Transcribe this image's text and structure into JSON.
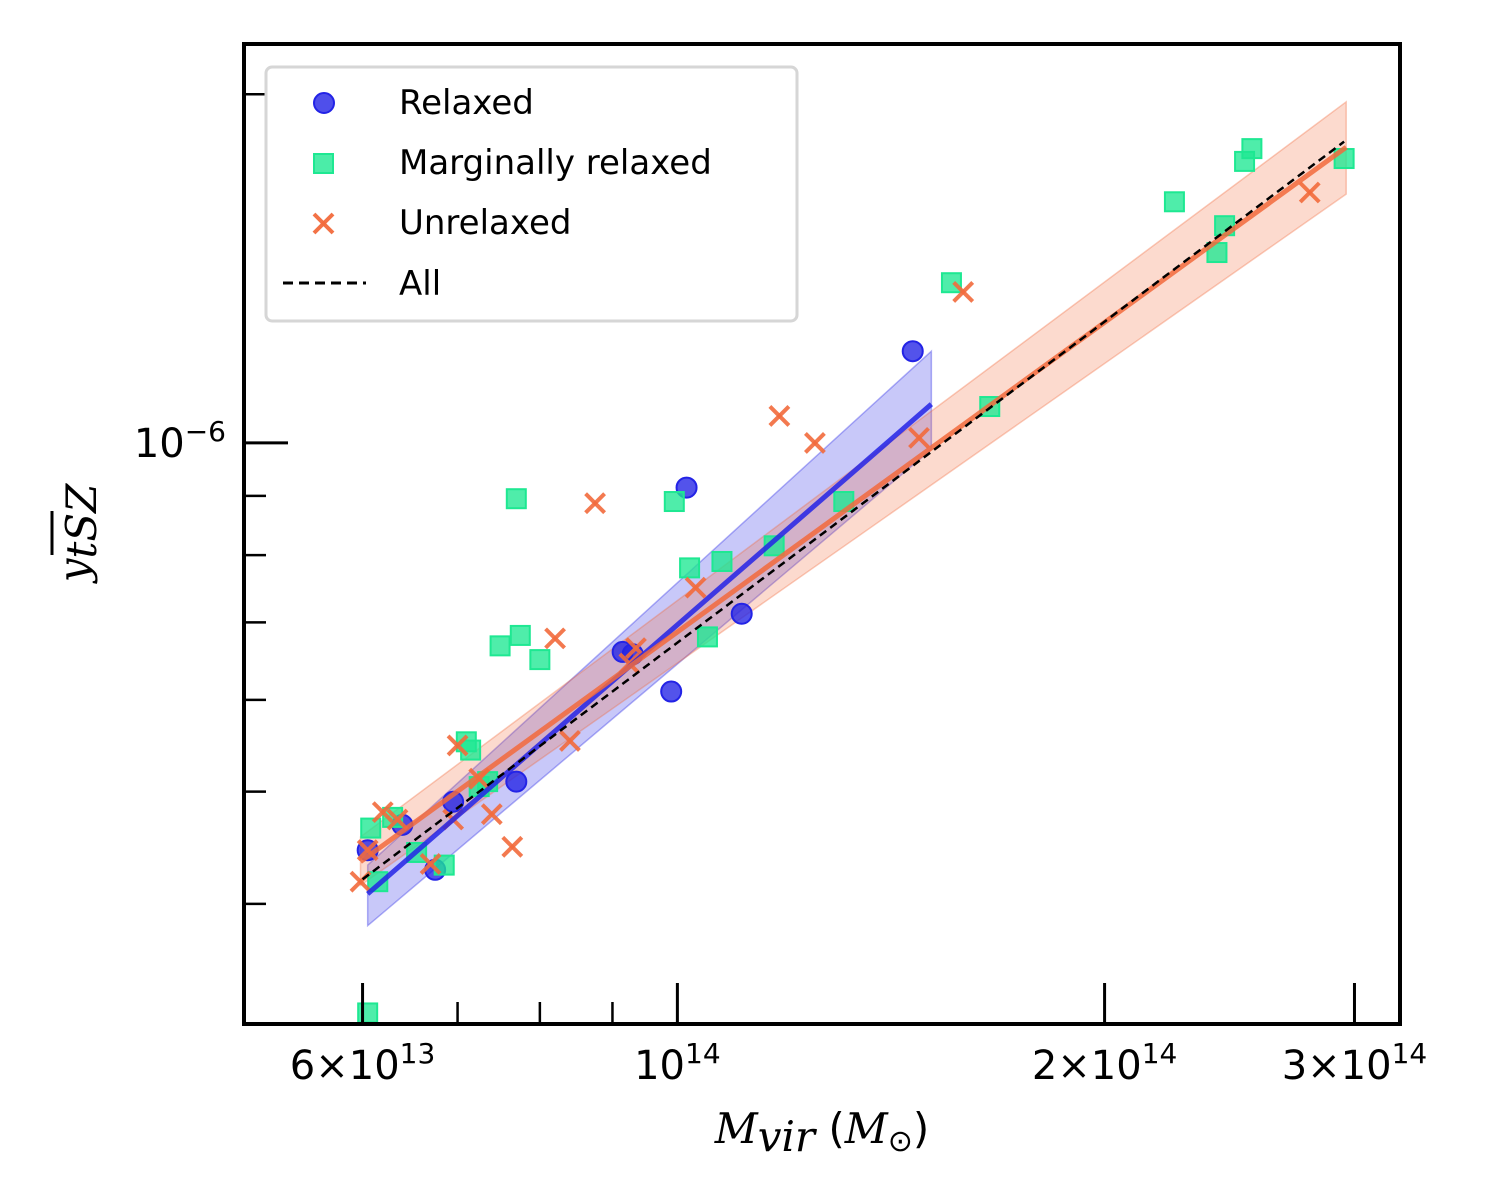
{
  "chart_data": {
    "type": "scatter",
    "x_scale": "log",
    "y_scale": "log",
    "xlim": [
      49500000000000,
      323000000000000
    ],
    "ylim": [
      3.15e-07,
      2.21e-06
    ],
    "xlabel": {
      "main": "M",
      "sub": "vir",
      "unit_open": " (",
      "unit_main": "M",
      "unit_sub": "⊙",
      "unit_close": ")"
    },
    "ylabel": {
      "main": "y",
      "sub": "tSZ"
    },
    "x_major_ticks": [
      {
        "value": 60000000000000,
        "mant": "6",
        "times": "×",
        "base": "10",
        "exp": "13"
      },
      {
        "value": 100000000000000,
        "mant": "",
        "times": "",
        "base": "10",
        "exp": "14"
      },
      {
        "value": 200000000000000,
        "mant": "2",
        "times": "×",
        "base": "10",
        "exp": "14"
      },
      {
        "value": 300000000000000,
        "mant": "3",
        "times": "×",
        "base": "10",
        "exp": "14"
      }
    ],
    "x_minor_ticks": [
      70000000000000,
      80000000000000,
      90000000000000
    ],
    "y_major_ticks": [
      {
        "value": 1e-06,
        "base": "10",
        "exp": "−6"
      }
    ],
    "y_minor_ticks": [
      4e-07,
      5e-07,
      6e-07,
      7e-07,
      8e-07,
      9e-07,
      2e-06
    ],
    "legend": {
      "position": "top-left",
      "entries": [
        {
          "label": "Relaxed",
          "marker": "circle",
          "color": "#2323e6"
        },
        {
          "label": "Marginally relaxed",
          "marker": "square",
          "color": "#1ee892"
        },
        {
          "label": "Unrelaxed",
          "marker": "x",
          "color": "#f26a3c"
        },
        {
          "label": "All",
          "marker": "dashed-line",
          "color": "#000000"
        }
      ]
    },
    "series": [
      {
        "name": "Relaxed",
        "marker": "circle",
        "color": "#2323e6",
        "points": [
          {
            "x": 60500000000000,
            "y": 4.45e-07
          },
          {
            "x": 64000000000000,
            "y": 4.68e-07
          },
          {
            "x": 67500000000000,
            "y": 4.28e-07
          },
          {
            "x": 77000000000000,
            "y": 5.1e-07
          },
          {
            "x": 69500000000000,
            "y": 4.9e-07
          },
          {
            "x": 91500000000000,
            "y": 6.6e-07
          },
          {
            "x": 93000000000000,
            "y": 6.57e-07
          },
          {
            "x": 99000000000000,
            "y": 6.1e-07
          },
          {
            "x": 101500000000000,
            "y": 9.15e-07
          },
          {
            "x": 111000000000000,
            "y": 7.12e-07
          },
          {
            "x": 146500000000000,
            "y": 1.2e-06
          }
        ]
      },
      {
        "name": "Marginally relaxed",
        "marker": "square",
        "color": "#1ee892",
        "points": [
          {
            "x": 60500000000000,
            "y": 3.22e-07
          },
          {
            "x": 60800000000000,
            "y": 4.65e-07
          },
          {
            "x": 61500000000000,
            "y": 4.18e-07
          },
          {
            "x": 63000000000000,
            "y": 4.75e-07
          },
          {
            "x": 65500000000000,
            "y": 4.43e-07
          },
          {
            "x": 68500000000000,
            "y": 4.32e-07
          },
          {
            "x": 71000000000000,
            "y": 5.52e-07
          },
          {
            "x": 71500000000000,
            "y": 5.43e-07
          },
          {
            "x": 72500000000000,
            "y": 5.05e-07
          },
          {
            "x": 73500000000000,
            "y": 5.1e-07
          },
          {
            "x": 75000000000000,
            "y": 6.68e-07
          },
          {
            "x": 77000000000000,
            "y": 8.95e-07
          },
          {
            "x": 77500000000000,
            "y": 6.82e-07
          },
          {
            "x": 80000000000000,
            "y": 6.5e-07
          },
          {
            "x": 99500000000000,
            "y": 8.9e-07
          },
          {
            "x": 102000000000000,
            "y": 7.8e-07
          },
          {
            "x": 105000000000000,
            "y": 6.8e-07
          },
          {
            "x": 107500000000000,
            "y": 7.9e-07
          },
          {
            "x": 117000000000000,
            "y": 8.15e-07
          },
          {
            "x": 131000000000000,
            "y": 8.9e-07
          },
          {
            "x": 156000000000000,
            "y": 1.375e-06
          },
          {
            "x": 166000000000000,
            "y": 1.075e-06
          },
          {
            "x": 224000000000000,
            "y": 1.615e-06
          },
          {
            "x": 240000000000000,
            "y": 1.46e-06
          },
          {
            "x": 243000000000000,
            "y": 1.54e-06
          },
          {
            "x": 251000000000000,
            "y": 1.75e-06
          },
          {
            "x": 254000000000000,
            "y": 1.795e-06
          },
          {
            "x": 295000000000000,
            "y": 1.76e-06
          }
        ]
      },
      {
        "name": "Unrelaxed",
        "marker": "x",
        "color": "#f26a3c",
        "points": [
          {
            "x": 59800000000000,
            "y": 4.18e-07
          },
          {
            "x": 60500000000000,
            "y": 4.45e-07
          },
          {
            "x": 62000000000000,
            "y": 4.8e-07
          },
          {
            "x": 63500000000000,
            "y": 4.73e-07
          },
          {
            "x": 67000000000000,
            "y": 4.33e-07
          },
          {
            "x": 69500000000000,
            "y": 4.73e-07
          },
          {
            "x": 70000000000000,
            "y": 5.48e-07
          },
          {
            "x": 72500000000000,
            "y": 5.13e-07
          },
          {
            "x": 74000000000000,
            "y": 4.78e-07
          },
          {
            "x": 76500000000000,
            "y": 4.48e-07
          },
          {
            "x": 82000000000000,
            "y": 6.78e-07
          },
          {
            "x": 84000000000000,
            "y": 5.53e-07
          },
          {
            "x": 87500000000000,
            "y": 8.87e-07
          },
          {
            "x": 92500000000000,
            "y": 6.45e-07
          },
          {
            "x": 93500000000000,
            "y": 6.65e-07
          },
          {
            "x": 103000000000000,
            "y": 7.5e-07
          },
          {
            "x": 118000000000000,
            "y": 1.055e-06
          },
          {
            "x": 125000000000000,
            "y": 1e-06
          },
          {
            "x": 148000000000000,
            "y": 1.01e-06
          },
          {
            "x": 159000000000000,
            "y": 1.35e-06
          },
          {
            "x": 279000000000000,
            "y": 1.645e-06
          }
        ]
      }
    ],
    "fits": [
      {
        "name": "Relaxed fit",
        "color": "#2323e6",
        "x_range": [
          60500000000000,
          151000000000000
        ],
        "y_start": 4.08e-07,
        "y_end": 1.08e-06,
        "band_start": [
          3.83e-07,
          4.32e-07
        ],
        "band_end": [
          9.87e-07,
          1.2e-06
        ]
      },
      {
        "name": "Unrelaxed fit",
        "color": "#f26a3c",
        "x_range": [
          59800000000000,
          296000000000000
        ],
        "y_start": 4.35e-07,
        "y_end": 1.8e-06,
        "band_start": [
          4.15e-07,
          4.57e-07
        ],
        "band_end": [
          1.64e-06,
          1.97e-06
        ]
      },
      {
        "name": "All",
        "color": "#000000",
        "style": "dashed",
        "x_range": [
          60000000000000,
          295000000000000
        ],
        "y_start": 4.2e-07,
        "y_end": 1.82e-06
      }
    ]
  }
}
